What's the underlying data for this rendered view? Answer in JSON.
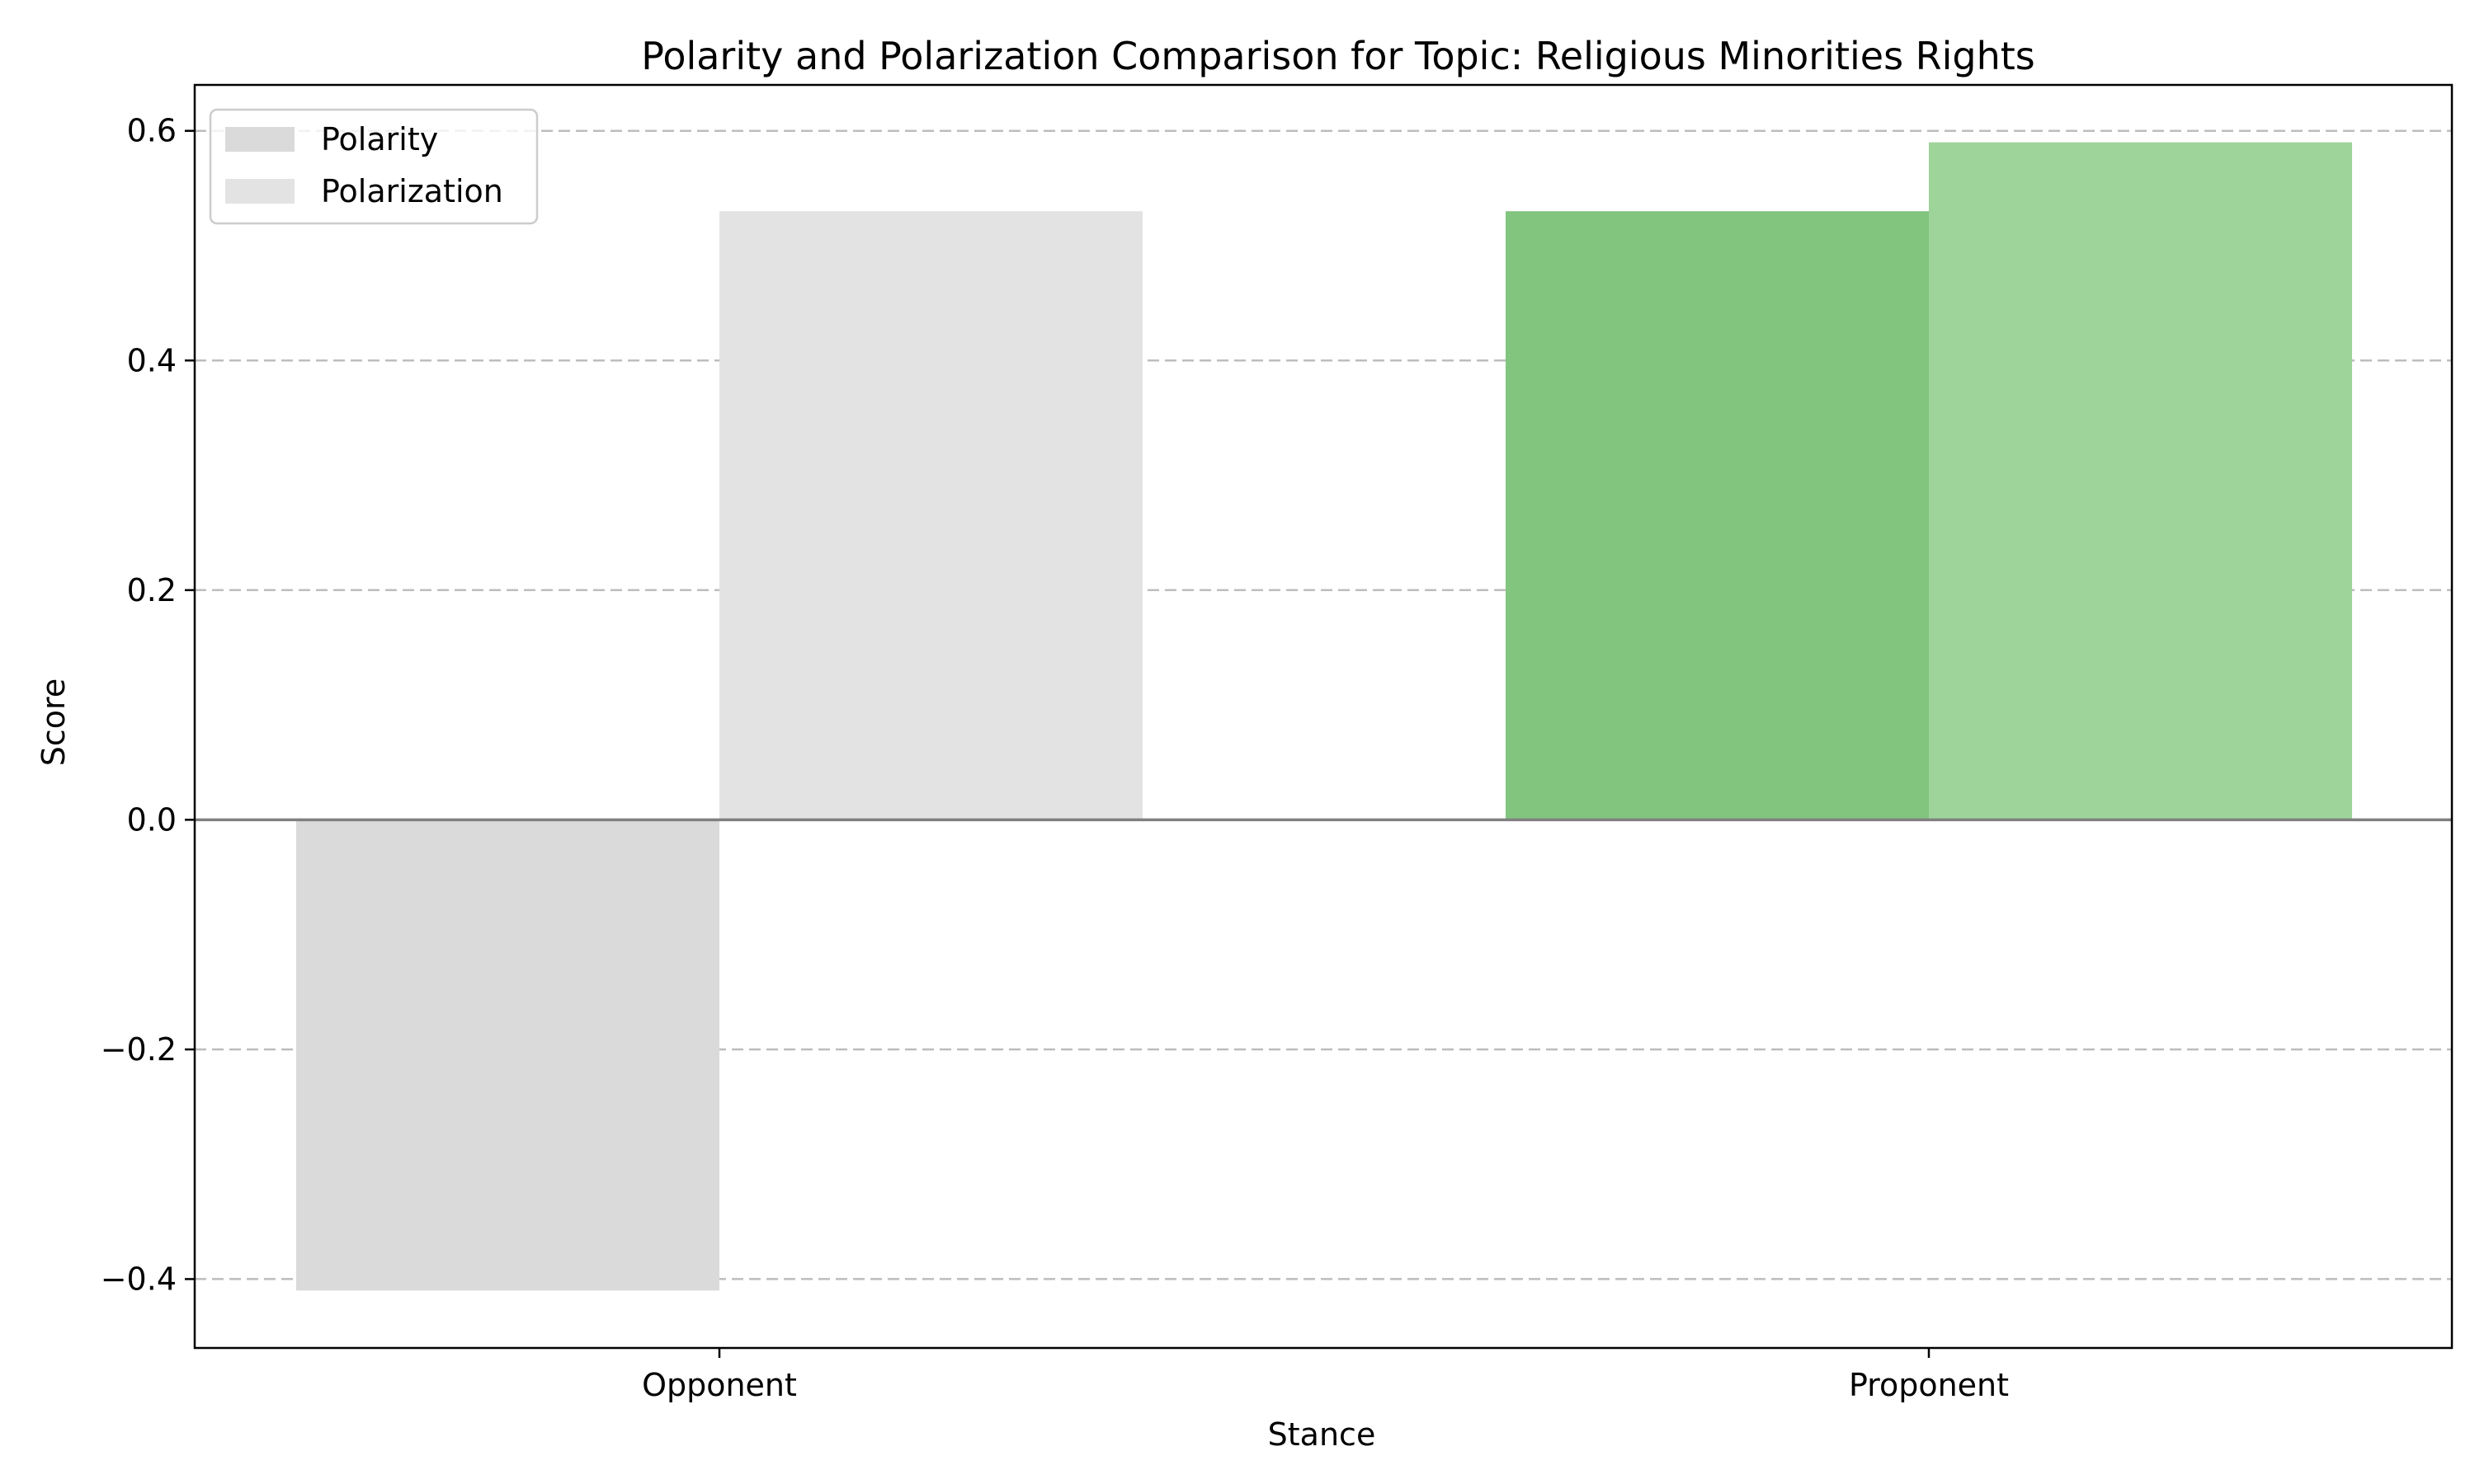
{
  "chart_data": {
    "type": "bar",
    "title": "Polarity and Polarization Comparison for Topic: Religious Minorities Rights",
    "xlabel": "Stance",
    "ylabel": "Score",
    "categories": [
      "Opponent",
      "Proponent"
    ],
    "ylim": [
      -0.46,
      0.64
    ],
    "yticks": [
      -0.4,
      -0.2,
      0.0,
      0.2,
      0.4,
      0.6
    ],
    "ytick_labels": [
      "−0.4",
      "−0.2",
      "0.0",
      "0.2",
      "0.4",
      "0.6"
    ],
    "grid": "y-dashed",
    "legend_position": "top-left",
    "series": [
      {
        "name": "Polarity",
        "values": [
          -0.41,
          0.53
        ],
        "colors": [
          "#dadada",
          "#82c57f"
        ],
        "legend_color": "#dadada"
      },
      {
        "name": "Polarization",
        "values": [
          0.53,
          0.59
        ],
        "colors": [
          "#e3e3e3",
          "#9ed49a"
        ],
        "legend_color": "#e3e3e3"
      }
    ]
  }
}
